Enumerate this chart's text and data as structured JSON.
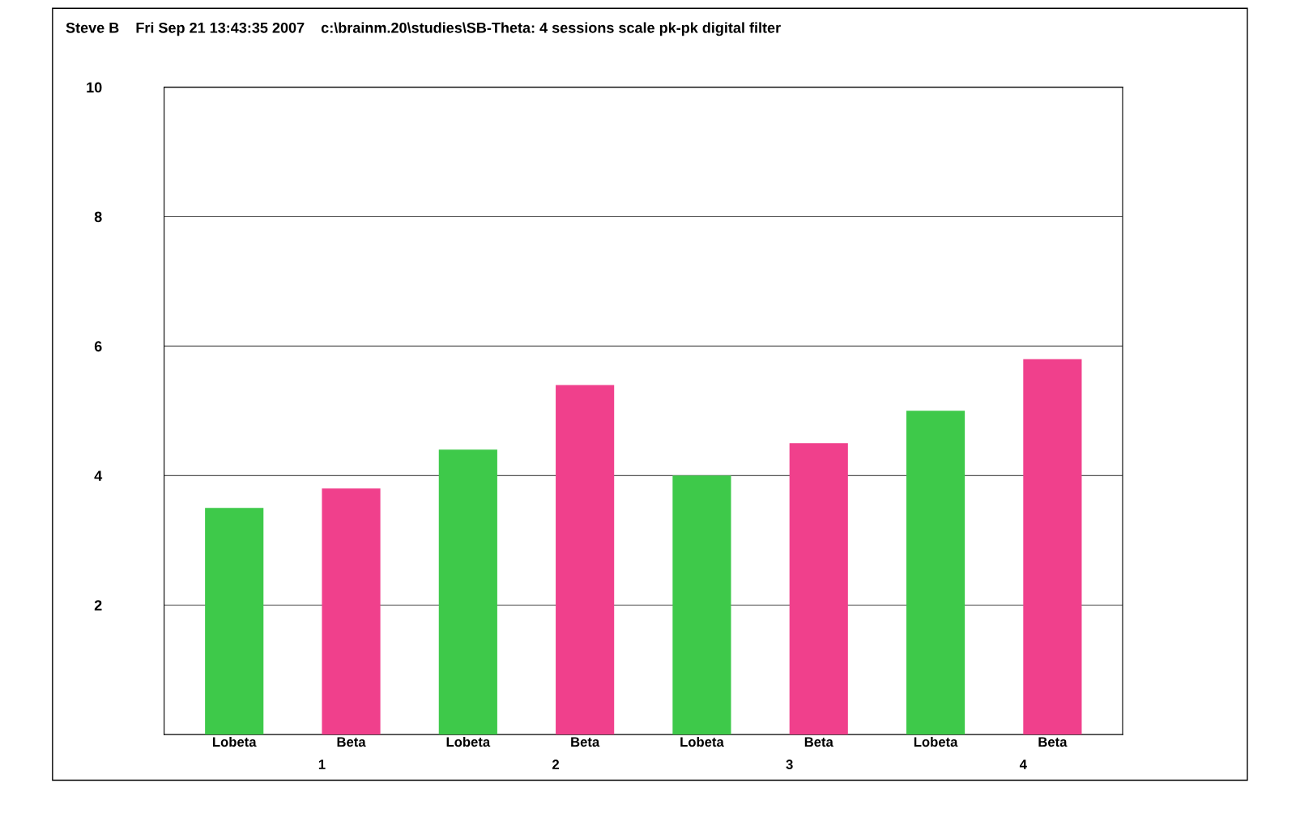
{
  "chart_data": {
    "type": "bar",
    "title": "Steve B    Fri Sep 21 13:43:35 2007    c:\\brainm.20\\studies\\SB-Theta: 4 sessions scale pk-pk digital filter",
    "categories": [
      "Lobeta",
      "Beta",
      "Lobeta",
      "Beta",
      "Lobeta",
      "Beta",
      "Lobeta",
      "Beta"
    ],
    "values": [
      3.5,
      3.8,
      4.4,
      5.4,
      4.0,
      4.5,
      5.0,
      5.8
    ],
    "colors": [
      "#3ec94a",
      "#f0408c",
      "#3ec94a",
      "#f0408c",
      "#3ec94a",
      "#f0408c",
      "#3ec94a",
      "#f0408c"
    ],
    "annotations": [
      "1",
      "2",
      "3",
      "4"
    ],
    "ylim": [
      0,
      10
    ],
    "yticks": [
      2,
      4,
      6,
      8,
      10
    ],
    "grid": "y"
  }
}
